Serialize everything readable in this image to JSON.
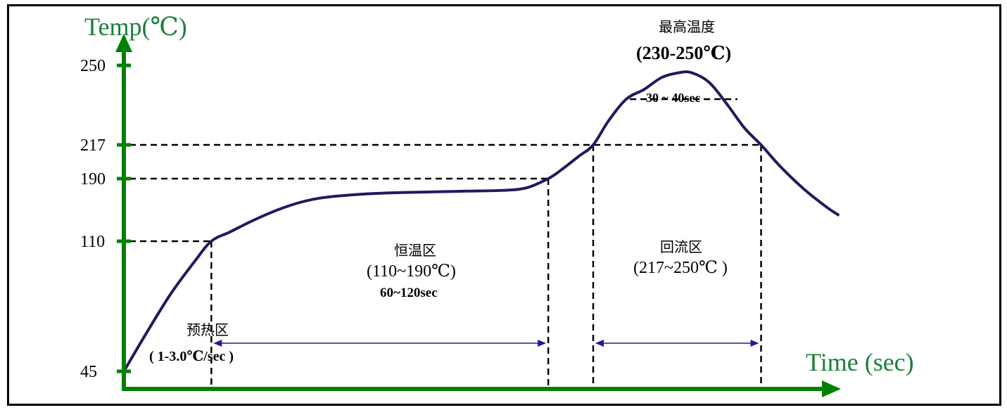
{
  "chart_data": {
    "type": "line",
    "ylabel": "Temp(℃)",
    "xlabel": "Time (sec)",
    "yticks": [
      45,
      110,
      190,
      217,
      250
    ],
    "colors": {
      "axis": "#008000",
      "curve": "#1f1a5e",
      "guide": "#000000",
      "arrow": "#1f1a9e",
      "axis_title": "#1a7f3a"
    },
    "series": [
      {
        "points": [
          [
            0,
            45
          ],
          [
            20,
            65
          ],
          [
            40,
            84
          ],
          [
            60,
            100
          ],
          [
            74,
            110
          ],
          [
            90,
            122
          ],
          [
            110,
            137
          ],
          [
            130,
            150
          ],
          [
            150,
            160
          ],
          [
            170,
            166
          ],
          [
            200,
            170
          ],
          [
            230,
            172
          ],
          [
            260,
            173
          ],
          [
            290,
            174
          ],
          [
            320,
            175
          ],
          [
            340,
            178
          ],
          [
            359,
            190
          ],
          [
            370,
            197
          ],
          [
            385,
            208
          ],
          [
            397,
            217
          ],
          [
            410,
            227
          ],
          [
            425,
            236
          ],
          [
            440,
            240
          ],
          [
            455,
            245
          ],
          [
            470,
            247
          ],
          [
            480,
            247
          ],
          [
            495,
            243
          ],
          [
            510,
            234
          ],
          [
            525,
            224
          ],
          [
            539,
            217
          ],
          [
            555,
            200
          ],
          [
            575,
            177
          ],
          [
            595,
            153
          ],
          [
            605,
            143
          ]
        ]
      }
    ],
    "guides": {
      "preheat_end": {
        "x": 74,
        "y": 110
      },
      "soak_end": {
        "x": 359,
        "y": 190
      },
      "reflow_start": {
        "x": 397,
        "y": 217
      },
      "reflow_end": {
        "x": 539,
        "y": 217
      },
      "peak_time_band": {
        "x_start": 428,
        "x_end": 519,
        "y": 236
      }
    },
    "annotations": {
      "preheat": {
        "name": "预热区",
        "rate": "( 1-3.0℃/sec )"
      },
      "soak": {
        "name": "恒温区",
        "range": "(110~190℃)",
        "time": "60~120sec"
      },
      "reflow": {
        "name": "回流区",
        "range": "(217~250℃ )"
      },
      "peak": {
        "name": "最高温度",
        "range": "(230-250℃)",
        "time": "30 ~ 40sec"
      }
    }
  }
}
